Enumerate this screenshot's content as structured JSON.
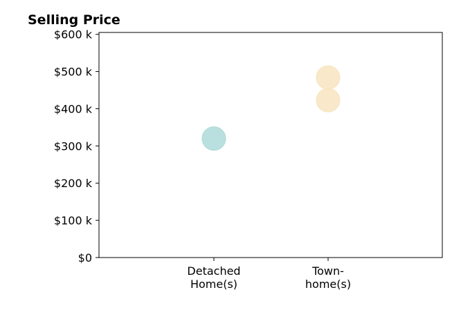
{
  "chart_data": {
    "type": "scatter",
    "title": "Selling Price",
    "xlabel": "",
    "ylabel": "",
    "categories": [
      [
        "Detached",
        "Home(s)"
      ],
      [
        "Town-",
        "home(s)"
      ]
    ],
    "y_ticks": [
      0,
      100000,
      200000,
      300000,
      400000,
      500000,
      600000
    ],
    "y_tick_labels": [
      "$0",
      "$100 k",
      "$200 k",
      "$300 k",
      "$400 k",
      "$500 k",
      "$600 k"
    ],
    "ylim": [
      0,
      605000
    ],
    "grid": false,
    "series": [
      {
        "category": "Detached Home(s)",
        "color": "#a8d8d6",
        "points": [
          320000
        ]
      },
      {
        "category": "Town-home(s)",
        "color": "#f7e4bd",
        "points": [
          423000,
          484000
        ]
      }
    ]
  }
}
